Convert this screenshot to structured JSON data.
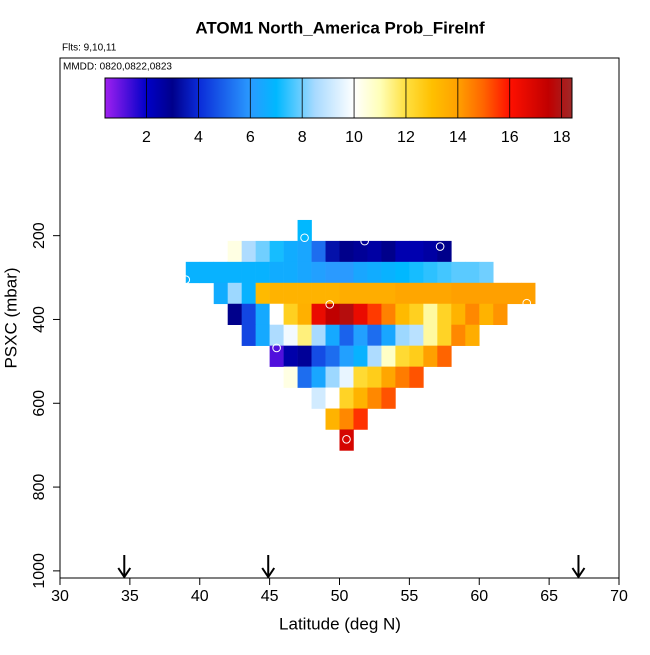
{
  "chart_data": {
    "type": "heatmap",
    "title": "ATOM1 North_America Prob_FireInf",
    "subtitle": "Flts: 9,10,11",
    "annotation": "MMDD: 0820,0822,0823",
    "x_label": "Latitude (deg N)",
    "y_label": "PSXC (mbar)",
    "xlim": [
      30,
      70
    ],
    "xticks": [
      30,
      35,
      40,
      45,
      50,
      55,
      60,
      65,
      70
    ],
    "ylim": [
      1017,
      -224
    ],
    "yticks": [
      200,
      400,
      600,
      800,
      1000
    ],
    "x": [
      39.5,
      40.5,
      41.5,
      42.5,
      43.5,
      44.5,
      45.5,
      46.5,
      47.5,
      48.5,
      49.5,
      50.5,
      51.5,
      52.5,
      53.5,
      54.5,
      55.5,
      56.5,
      57.5,
      58.5,
      59.5,
      60.5,
      61.5,
      62.5,
      63.5
    ],
    "y": [
      187.5,
      237.5,
      287.5,
      337.5,
      387.5,
      437.5,
      487.5,
      537.5,
      587.5,
      637.5,
      687.5
    ],
    "z": [
      [
        null,
        null,
        null,
        null,
        null,
        null,
        null,
        null,
        7.0,
        null,
        null,
        null,
        null,
        null,
        null,
        null,
        null,
        null,
        null,
        null,
        null,
        null,
        null,
        null,
        null
      ],
      [
        null,
        null,
        null,
        10.4,
        8.6,
        8.0,
        7.2,
        6.6,
        6.4,
        5.2,
        3.4,
        3.0,
        2.8,
        2.6,
        3.0,
        2.4,
        2.4,
        2.6,
        3.0,
        null,
        null,
        null,
        null,
        null,
        null
      ],
      [
        6.8,
        6.8,
        6.8,
        6.8,
        6.8,
        6.8,
        6.6,
        6.6,
        6.4,
        6.2,
        6.0,
        6.0,
        6.4,
        6.6,
        6.8,
        7.0,
        7.2,
        7.4,
        7.6,
        7.8,
        7.8,
        8.0,
        null,
        null,
        null
      ],
      [
        null,
        null,
        6.6,
        8.4,
        6.8,
        13.2,
        13.4,
        13.4,
        13.4,
        13.4,
        13.4,
        13.6,
        13.6,
        13.6,
        13.6,
        13.8,
        13.8,
        13.8,
        13.8,
        14.0,
        14.0,
        14.0,
        14.0,
        14.0,
        14.0
      ],
      [
        null,
        null,
        null,
        3.0,
        4.5,
        6.5,
        10.0,
        12.5,
        13.5,
        16.5,
        17.5,
        17.8,
        16.5,
        15.5,
        14.5,
        13.2,
        12.5,
        11.2,
        12.4,
        13.4,
        14.4,
        13.4,
        14.2,
        null,
        null
      ],
      [
        null,
        null,
        null,
        null,
        4.5,
        6.5,
        8.6,
        9.8,
        11.5,
        8.5,
        6.5,
        5.0,
        6.2,
        5.2,
        6.4,
        8.4,
        8.8,
        11.2,
        12.4,
        14.4,
        13.6,
        null,
        null,
        null,
        null
      ],
      [
        null,
        null,
        null,
        null,
        null,
        null,
        1.2,
        2.5,
        2.8,
        4.6,
        5.2,
        6.2,
        6.8,
        8.6,
        10.8,
        12.2,
        12.6,
        14.0,
        15.0,
        null,
        null,
        null,
        null,
        null,
        null
      ],
      [
        null,
        null,
        null,
        null,
        null,
        null,
        null,
        10.4,
        5.2,
        6.4,
        8.4,
        9.6,
        12.2,
        12.6,
        13.8,
        14.6,
        15.2,
        null,
        null,
        null,
        null,
        null,
        null,
        null,
        null
      ],
      [
        null,
        null,
        null,
        null,
        null,
        null,
        null,
        null,
        null,
        9.2,
        10.0,
        12.4,
        13.4,
        14.4,
        15.2,
        null,
        null,
        null,
        null,
        null,
        null,
        null,
        null,
        null,
        null
      ],
      [
        null,
        null,
        null,
        null,
        null,
        null,
        null,
        null,
        null,
        null,
        13.4,
        14.4,
        15.6,
        null,
        null,
        null,
        null,
        null,
        null,
        null,
        null,
        null,
        null,
        null,
        null
      ],
      [
        null,
        null,
        null,
        null,
        null,
        null,
        null,
        null,
        null,
        null,
        null,
        17.0,
        null,
        null,
        null,
        null,
        null,
        null,
        null,
        null,
        null,
        null,
        null,
        null,
        null
      ]
    ],
    "zlim": [
      0.4,
      18.4
    ],
    "zticks": [
      2,
      4,
      6,
      8,
      10,
      12,
      14,
      16,
      18
    ],
    "colorscale": [
      [
        0.4,
        "#a020f0"
      ],
      [
        2,
        "#0000c8"
      ],
      [
        3,
        "#00008b"
      ],
      [
        4,
        "#0a2ad8"
      ],
      [
        6,
        "#2a9aff"
      ],
      [
        7,
        "#00b8ff"
      ],
      [
        8.5,
        "#a8daff"
      ],
      [
        10,
        "#ffffff"
      ],
      [
        11,
        "#ffffb8"
      ],
      [
        12,
        "#ffe040"
      ],
      [
        13,
        "#ffc000"
      ],
      [
        14,
        "#ffa000"
      ],
      [
        15,
        "#ff6400"
      ],
      [
        16,
        "#ff1000"
      ],
      [
        17.5,
        "#c00000"
      ],
      [
        18.4,
        "#a02828"
      ]
    ],
    "markers": {
      "x": [
        47.5,
        51.8,
        57.2,
        39.0,
        49.3,
        63.4,
        45.5,
        50.5
      ],
      "y": [
        205,
        213,
        226,
        305,
        364,
        361,
        468,
        686
      ]
    },
    "arrows": [
      34.6,
      44.9,
      67.1
    ]
  }
}
